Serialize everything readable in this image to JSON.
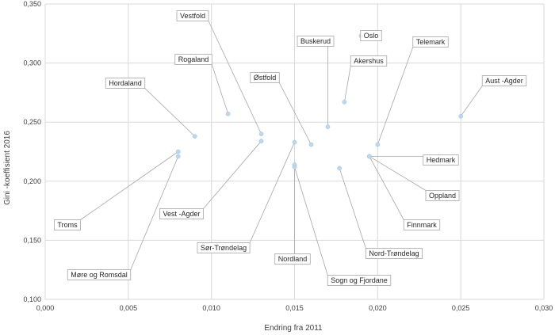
{
  "chart_data": {
    "type": "scatter",
    "xlabel": "Endring fra 2011",
    "ylabel": "Gini -koeffisient 2016",
    "xlim": [
      0,
      0.03
    ],
    "ylim": [
      0.1,
      0.35
    ],
    "x_ticks": [
      "0,000",
      "0,005",
      "0,010",
      "0,015",
      "0,020",
      "0,025",
      "0,030"
    ],
    "y_ticks": [
      "0,100",
      "0,150",
      "0,200",
      "0,250",
      "0,300",
      "0,350"
    ],
    "grid": true,
    "point_color": "#bdd7ee",
    "points": [
      {
        "label": "Oslo",
        "x": 0.019,
        "y": 0.323
      },
      {
        "label": "Buskerud",
        "x": 0.017,
        "y": 0.246
      },
      {
        "label": "Akershus",
        "x": 0.018,
        "y": 0.267
      },
      {
        "label": "Telemark",
        "x": 0.02,
        "y": 0.231
      },
      {
        "label": "Aust -Agder",
        "x": 0.025,
        "y": 0.255
      },
      {
        "label": "Vestfold",
        "x": 0.013,
        "y": 0.24
      },
      {
        "label": "Rogaland",
        "x": 0.011,
        "y": 0.257
      },
      {
        "label": "Hordaland",
        "x": 0.009,
        "y": 0.238
      },
      {
        "label": "Østfold",
        "x": 0.016,
        "y": 0.231
      },
      {
        "label": "Hedmark",
        "x": 0.0195,
        "y": 0.221
      },
      {
        "label": "Oppland",
        "x": 0.0195,
        "y": 0.221
      },
      {
        "label": "Finnmark",
        "x": 0.0195,
        "y": 0.221
      },
      {
        "label": "Nord-Trøndelag",
        "x": 0.0177,
        "y": 0.211
      },
      {
        "label": "Troms",
        "x": 0.008,
        "y": 0.225
      },
      {
        "label": "Møre og Romsdal",
        "x": 0.008,
        "y": 0.221
      },
      {
        "label": "Vest -Agder",
        "x": 0.013,
        "y": 0.234
      },
      {
        "label": "Sør-Trøndelag",
        "x": 0.015,
        "y": 0.233
      },
      {
        "label": "Nordland",
        "x": 0.015,
        "y": 0.214
      },
      {
        "label": "Sogn og Fjordane",
        "x": 0.015,
        "y": 0.212
      }
    ]
  }
}
